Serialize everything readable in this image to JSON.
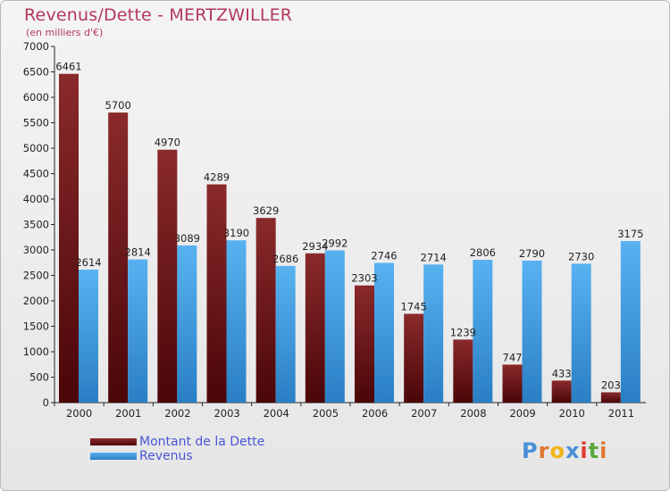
{
  "title": "Revenus/Dette - MERTZWILLER",
  "subtitle": "(en milliers d'€)",
  "colors": {
    "dette": "#6b1214",
    "revenus": "#3f9de2",
    "title": "#b3385b",
    "legend_text": "#4a56d6"
  },
  "chart_data": {
    "type": "bar",
    "categories": [
      "2000",
      "2001",
      "2002",
      "2003",
      "2004",
      "2005",
      "2006",
      "2007",
      "2008",
      "2009",
      "2010",
      "2011"
    ],
    "series": [
      {
        "name": "Montant de la Dette",
        "values": [
          6461,
          5700,
          4970,
          4289,
          3629,
          2934,
          2303,
          1745,
          1239,
          747,
          433,
          203
        ]
      },
      {
        "name": "Revenus",
        "values": [
          2614,
          2814,
          3089,
          3190,
          2686,
          2992,
          2746,
          2714,
          2806,
          2790,
          2730,
          3175
        ]
      }
    ],
    "ylim": [
      0,
      7000
    ],
    "yticks": [
      0,
      500,
      1000,
      1500,
      2000,
      2500,
      3000,
      3500,
      4000,
      4500,
      5000,
      5500,
      6000,
      6500,
      7000
    ],
    "grid": false,
    "legend": "bottom-left"
  },
  "legend": {
    "dette_label": "Montant de la Dette",
    "revenus_label": "Revenus"
  },
  "logo": {
    "letters": [
      "P",
      "r",
      "o",
      "x",
      "i",
      "t",
      "i"
    ],
    "colors": [
      "#4a8fd8",
      "#e0782f",
      "#f2b418",
      "#4a8fd8",
      "#e23a2f",
      "#5aa83c",
      "#e0782f"
    ]
  }
}
